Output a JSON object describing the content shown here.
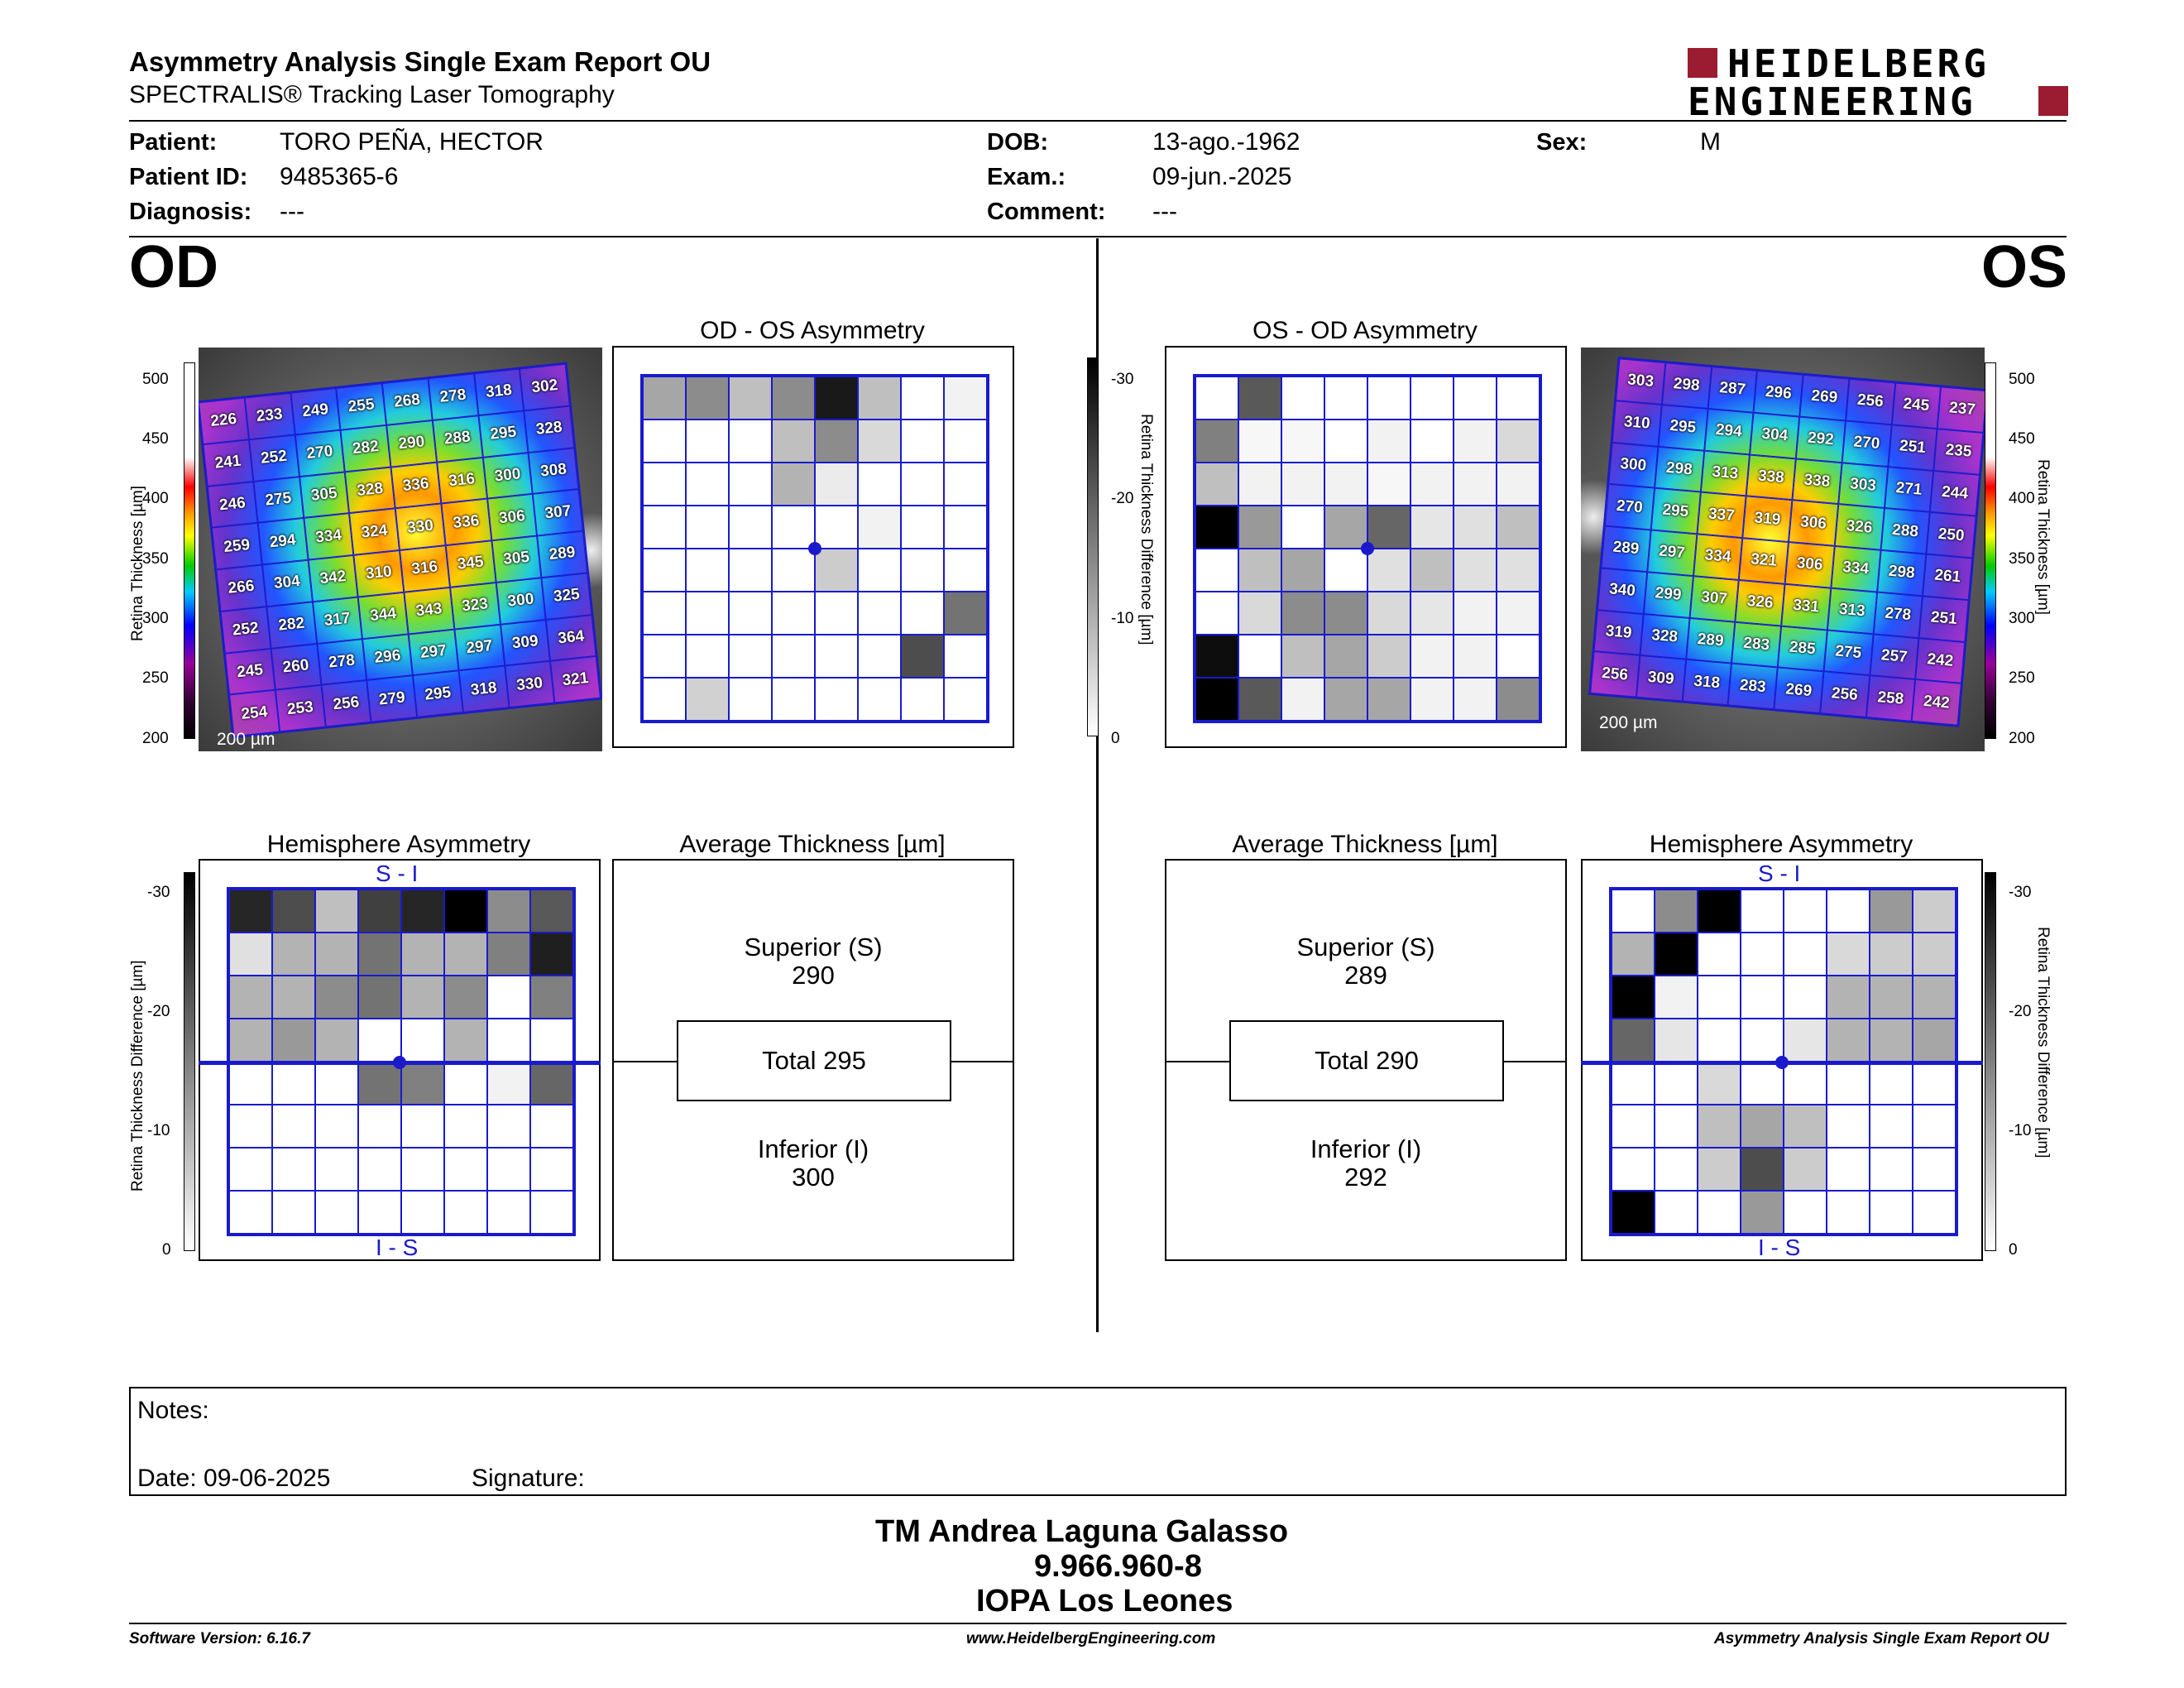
{
  "header": {
    "title": "Asymmetry Analysis Single Exam Report OU",
    "subtitle": "SPECTRALIS® Tracking Laser Tomography",
    "logo_line1": "HEIDELBERG",
    "logo_line2": "ENGINEERING",
    "brand_color": "#9b1b30"
  },
  "patient": {
    "patient_label": "Patient:",
    "patient_value": "TORO PEÑA, HECTOR",
    "id_label": "Patient ID:",
    "id_value": "9485365-6",
    "diag_label": "Diagnosis:",
    "diag_value": "---",
    "dob_label": "DOB:",
    "dob_value": "13-ago.-1962",
    "exam_label": "Exam.:",
    "exam_value": "09-jun.-2025",
    "comment_label": "Comment:",
    "comment_value": "---",
    "sex_label": "Sex:",
    "sex_value": "M"
  },
  "od": {
    "eye": "OD",
    "asym_title": "OD - OS Asymmetry",
    "hemi_title": "Hemisphere Asymmetry",
    "avg_title": "Average Thickness [µm]",
    "superior_label": "Superior (S)",
    "superior_value": "290",
    "total": "Total 295",
    "inferior_label": "Inferior (I)",
    "inferior_value": "300",
    "scale_bar": "200 µm",
    "thickness": [
      [
        "226",
        "233",
        "249",
        "255",
        "268",
        "278",
        "318",
        "302"
      ],
      [
        "241",
        "252",
        "270",
        "282",
        "290",
        "288",
        "295",
        "328"
      ],
      [
        "246",
        "275",
        "305",
        "328",
        "336",
        "316",
        "300",
        "308"
      ],
      [
        "259",
        "294",
        "334",
        "324",
        "330",
        "336",
        "306",
        "307"
      ],
      [
        "266",
        "304",
        "342",
        "310",
        "316",
        "345",
        "305",
        "289"
      ],
      [
        "252",
        "282",
        "317",
        "344",
        "343",
        "323",
        "300",
        "325"
      ],
      [
        "245",
        "260",
        "278",
        "296",
        "297",
        "297",
        "309",
        "364"
      ],
      [
        "254",
        "253",
        "256",
        "279",
        "295",
        "318",
        "330",
        "321"
      ]
    ],
    "asym_gray": [
      [
        0.35,
        0.45,
        0.25,
        0.45,
        0.9,
        0.25,
        0,
        0.05
      ],
      [
        0,
        0,
        0,
        0.25,
        0.45,
        0.15,
        0,
        0
      ],
      [
        0,
        0,
        0,
        0.3,
        0.08,
        0,
        0,
        0
      ],
      [
        0,
        0,
        0,
        0,
        0,
        0.05,
        0,
        0
      ],
      [
        0,
        0,
        0,
        0,
        0.2,
        0,
        0,
        0
      ],
      [
        0,
        0,
        0,
        0,
        0,
        0,
        0,
        0.55
      ],
      [
        0,
        0,
        0,
        0,
        0,
        0,
        0.7,
        0
      ],
      [
        0,
        0.18,
        0,
        0,
        0,
        0,
        0,
        0
      ]
    ],
    "hemi_gray": [
      [
        0.85,
        0.7,
        0.25,
        0.75,
        0.85,
        1,
        0.45,
        0.65
      ],
      [
        0.12,
        0.3,
        0.3,
        0.55,
        0.3,
        0.3,
        0.5,
        0.88
      ],
      [
        0.3,
        0.3,
        0.45,
        0.55,
        0.3,
        0.45,
        0,
        0.5
      ],
      [
        0.3,
        0.4,
        0.3,
        0,
        0,
        0.3,
        0,
        0
      ],
      [
        0,
        0,
        0,
        0.55,
        0.5,
        0,
        0.05,
        0.6
      ],
      [
        0,
        0,
        0,
        0,
        0,
        0,
        0,
        0
      ],
      [
        0,
        0,
        0,
        0,
        0,
        0,
        0,
        0
      ],
      [
        0,
        0,
        0,
        0,
        0,
        0,
        0,
        0
      ]
    ]
  },
  "os": {
    "eye": "OS",
    "asym_title": "OS - OD Asymmetry",
    "hemi_title": "Hemisphere Asymmetry",
    "avg_title": "Average Thickness [µm]",
    "superior_label": "Superior (S)",
    "superior_value": "289",
    "total": "Total 290",
    "inferior_label": "Inferior (I)",
    "inferior_value": "292",
    "scale_bar": "200 µm",
    "thickness": [
      [
        "303",
        "298",
        "287",
        "296",
        "269",
        "256",
        "245",
        "237"
      ],
      [
        "310",
        "295",
        "294",
        "304",
        "292",
        "270",
        "251",
        "235"
      ],
      [
        "300",
        "298",
        "313",
        "338",
        "338",
        "303",
        "271",
        "244"
      ],
      [
        "270",
        "295",
        "337",
        "319",
        "306",
        "326",
        "288",
        "250"
      ],
      [
        "289",
        "297",
        "334",
        "321",
        "306",
        "334",
        "298",
        "261"
      ],
      [
        "340",
        "299",
        "307",
        "326",
        "331",
        "313",
        "278",
        "251"
      ],
      [
        "319",
        "328",
        "289",
        "283",
        "285",
        "275",
        "257",
        "242"
      ],
      [
        "256",
        "309",
        "318",
        "283",
        "269",
        "256",
        "258",
        "242"
      ]
    ],
    "asym_gray": [
      [
        0,
        0.65,
        0,
        0,
        0,
        0,
        0,
        0
      ],
      [
        0.5,
        0.03,
        0.03,
        0,
        0.05,
        0,
        0.05,
        0.15
      ],
      [
        0.25,
        0.05,
        0.05,
        0.05,
        0.03,
        0.05,
        0.05,
        0.05
      ],
      [
        1,
        0.4,
        0,
        0.35,
        0.6,
        0.1,
        0.12,
        0.25
      ],
      [
        0,
        0.25,
        0.35,
        0,
        0.12,
        0.25,
        0.12,
        0.12
      ],
      [
        0,
        0.15,
        0.45,
        0.45,
        0.15,
        0.1,
        0.05,
        0.05
      ],
      [
        0.95,
        0,
        0.25,
        0.35,
        0.2,
        0.05,
        0.05,
        0
      ],
      [
        1,
        0.65,
        0.05,
        0.35,
        0.35,
        0.05,
        0.05,
        0.45
      ]
    ],
    "hemi_gray": [
      [
        0,
        0.45,
        1,
        0,
        0,
        0,
        0.4,
        0.2
      ],
      [
        0.3,
        1,
        0,
        0,
        0,
        0.15,
        0.2,
        0.2
      ],
      [
        1,
        0.05,
        0,
        0,
        0,
        0.3,
        0.3,
        0.3
      ],
      [
        0.6,
        0.1,
        0,
        0,
        0.1,
        0.3,
        0.3,
        0.35
      ],
      [
        0,
        0,
        0.15,
        0,
        0,
        0,
        0,
        0
      ],
      [
        0,
        0,
        0.25,
        0.35,
        0.25,
        0,
        0,
        0
      ],
      [
        0,
        0,
        0.2,
        0.7,
        0.2,
        0,
        0,
        0
      ],
      [
        1,
        0,
        0,
        0.4,
        0,
        0,
        0,
        0
      ]
    ]
  },
  "scales": {
    "thickness_ticks": [
      "500",
      "450",
      "400",
      "350",
      "300",
      "250",
      "200"
    ],
    "thickness_label": "Retina Thickness [µm]",
    "diff_ticks": [
      "-30",
      "-20",
      "-10",
      "0"
    ],
    "diff_label": "Retina Thickness Difference [µm]",
    "si": "S - I",
    "is": "I - S"
  },
  "notes": {
    "notes_label": "Notes:",
    "date": "Date: 09-06-2025",
    "signature": "Signature:"
  },
  "signatory": {
    "name": "TM Andrea Laguna Galasso",
    "id": "9.966.960-8",
    "org": "IOPA Los Leones"
  },
  "footer": {
    "version": "Software Version: 6.16.7",
    "url": "www.HeidelbergEngineering.com",
    "report": "Asymmetry Analysis Single Exam Report OU"
  }
}
